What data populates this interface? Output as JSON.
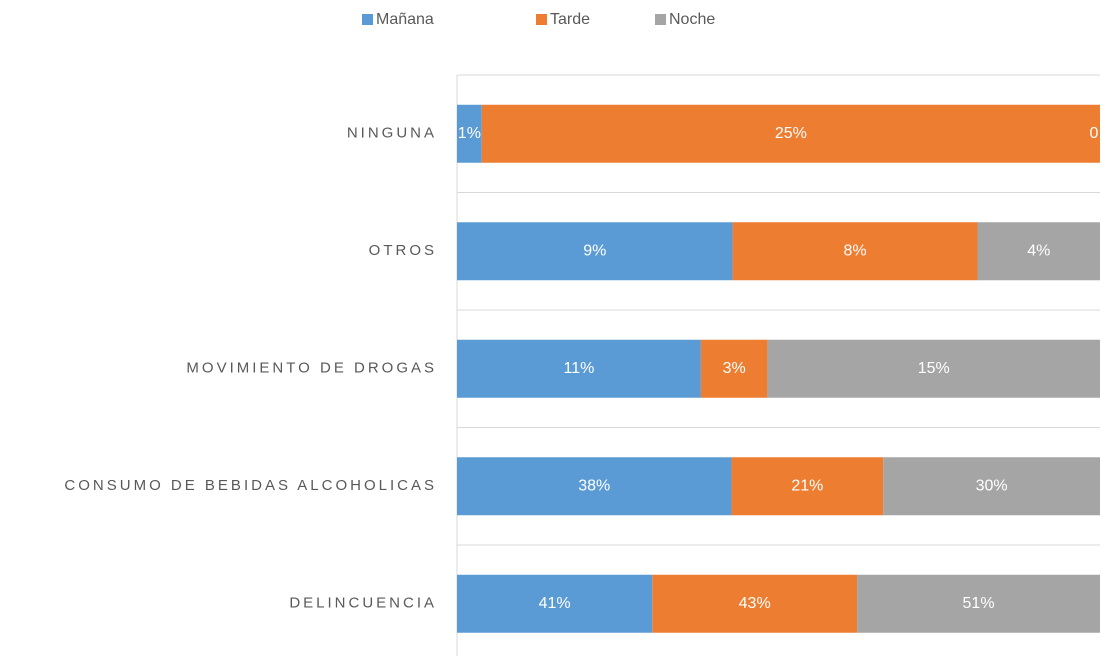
{
  "chart_data": {
    "type": "bar",
    "orientation": "horizontal",
    "stack": "percent",
    "categories": [
      "NINGUNA",
      "OTROS",
      "MOVIMIENTO DE DROGAS",
      "CONSUMO DE BEBIDAS ALCOHOLICAS",
      "DELINCUENCIA"
    ],
    "series": [
      {
        "name": "Mañana",
        "color": "#5b9bd5",
        "values": [
          1,
          9,
          11,
          38,
          41
        ],
        "value_labels": [
          "1%",
          "9%",
          "11%",
          "38%",
          "41%"
        ]
      },
      {
        "name": "Tarde",
        "color": "#ed7d31",
        "values": [
          25,
          8,
          3,
          21,
          43
        ],
        "value_labels": [
          "25%",
          "8%",
          "3%",
          "21%",
          "43%"
        ]
      },
      {
        "name": "Noche",
        "color": "#a5a5a5",
        "values": [
          0,
          4,
          15,
          30,
          51
        ],
        "value_labels": [
          "0",
          "4%",
          "15%",
          "30%",
          "51%"
        ]
      }
    ],
    "legend": "top"
  }
}
